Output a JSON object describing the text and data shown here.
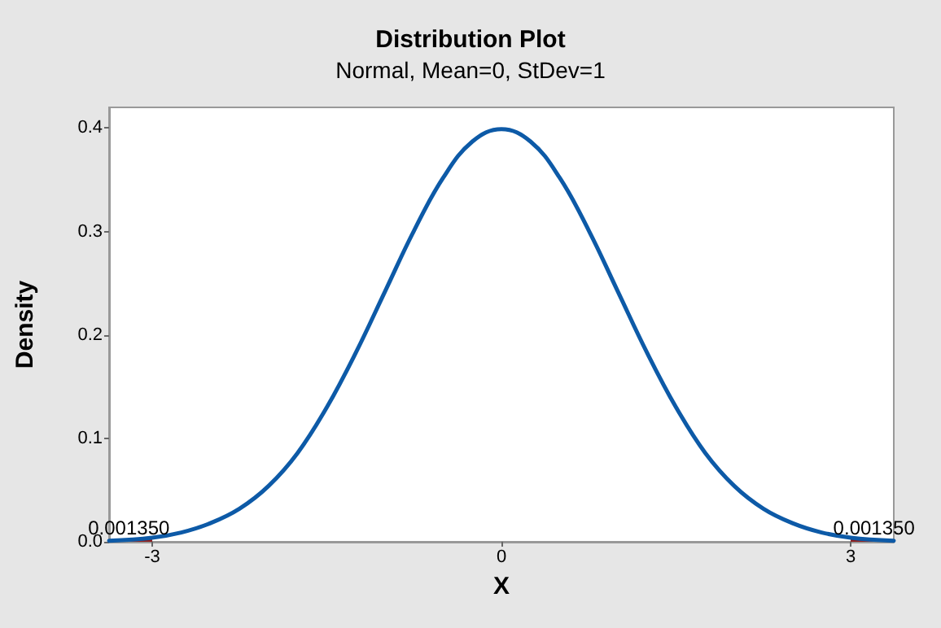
{
  "chart_data": {
    "type": "line",
    "title": "Distribution Plot",
    "subtitle": "Normal, Mean=0, StDev=1",
    "xlabel": "X",
    "ylabel": "Density",
    "xlim": [
      -3.37,
      3.37
    ],
    "xticks": [
      -3,
      0,
      3
    ],
    "ylim": [
      0,
      0.42
    ],
    "yticks": [
      {
        "value": 0,
        "label": "0.0"
      },
      {
        "value": 0.1,
        "label": "0.1"
      },
      {
        "value": 0.2,
        "label": "0.2"
      },
      {
        "value": 0.3,
        "label": "0.3"
      },
      {
        "value": 0.4,
        "label": "0.4"
      }
    ],
    "grid": false,
    "marker": "none",
    "line_style": "solid",
    "series": [
      {
        "type": "area",
        "color": "#8b1c1c",
        "x": [
          -3.37,
          -3
        ],
        "values": [
          0.001,
          0.004
        ]
      },
      {
        "type": "area",
        "color": "#8b1c1c",
        "x": [
          3,
          3.37
        ],
        "values": [
          0.004,
          0.001
        ]
      },
      {
        "color": "#0d5aa7",
        "x": [
          -3.37,
          -3,
          -2.75,
          -2.5,
          -2.25,
          -2,
          -1.75,
          -1.5,
          -1.25,
          -1,
          -0.75,
          -0.5,
          -0.25,
          0,
          0.25,
          0.5,
          0.75,
          1,
          1.25,
          1.5,
          1.75,
          2,
          2.25,
          2.5,
          2.75,
          3,
          3.37
        ],
        "values": [
          0.001,
          0.004,
          0.009,
          0.018,
          0.032,
          0.054,
          0.086,
          0.13,
          0.183,
          0.242,
          0.301,
          0.352,
          0.387,
          0.399,
          0.387,
          0.352,
          0.301,
          0.242,
          0.183,
          0.13,
          0.086,
          0.054,
          0.032,
          0.018,
          0.009,
          0.004,
          0.001
        ]
      }
    ],
    "annotations": [
      {
        "text": "0.001350",
        "x": -3.2,
        "y": 0.001
      },
      {
        "text": "0.001350",
        "x": 3.2,
        "y": 0.001
      }
    ]
  }
}
